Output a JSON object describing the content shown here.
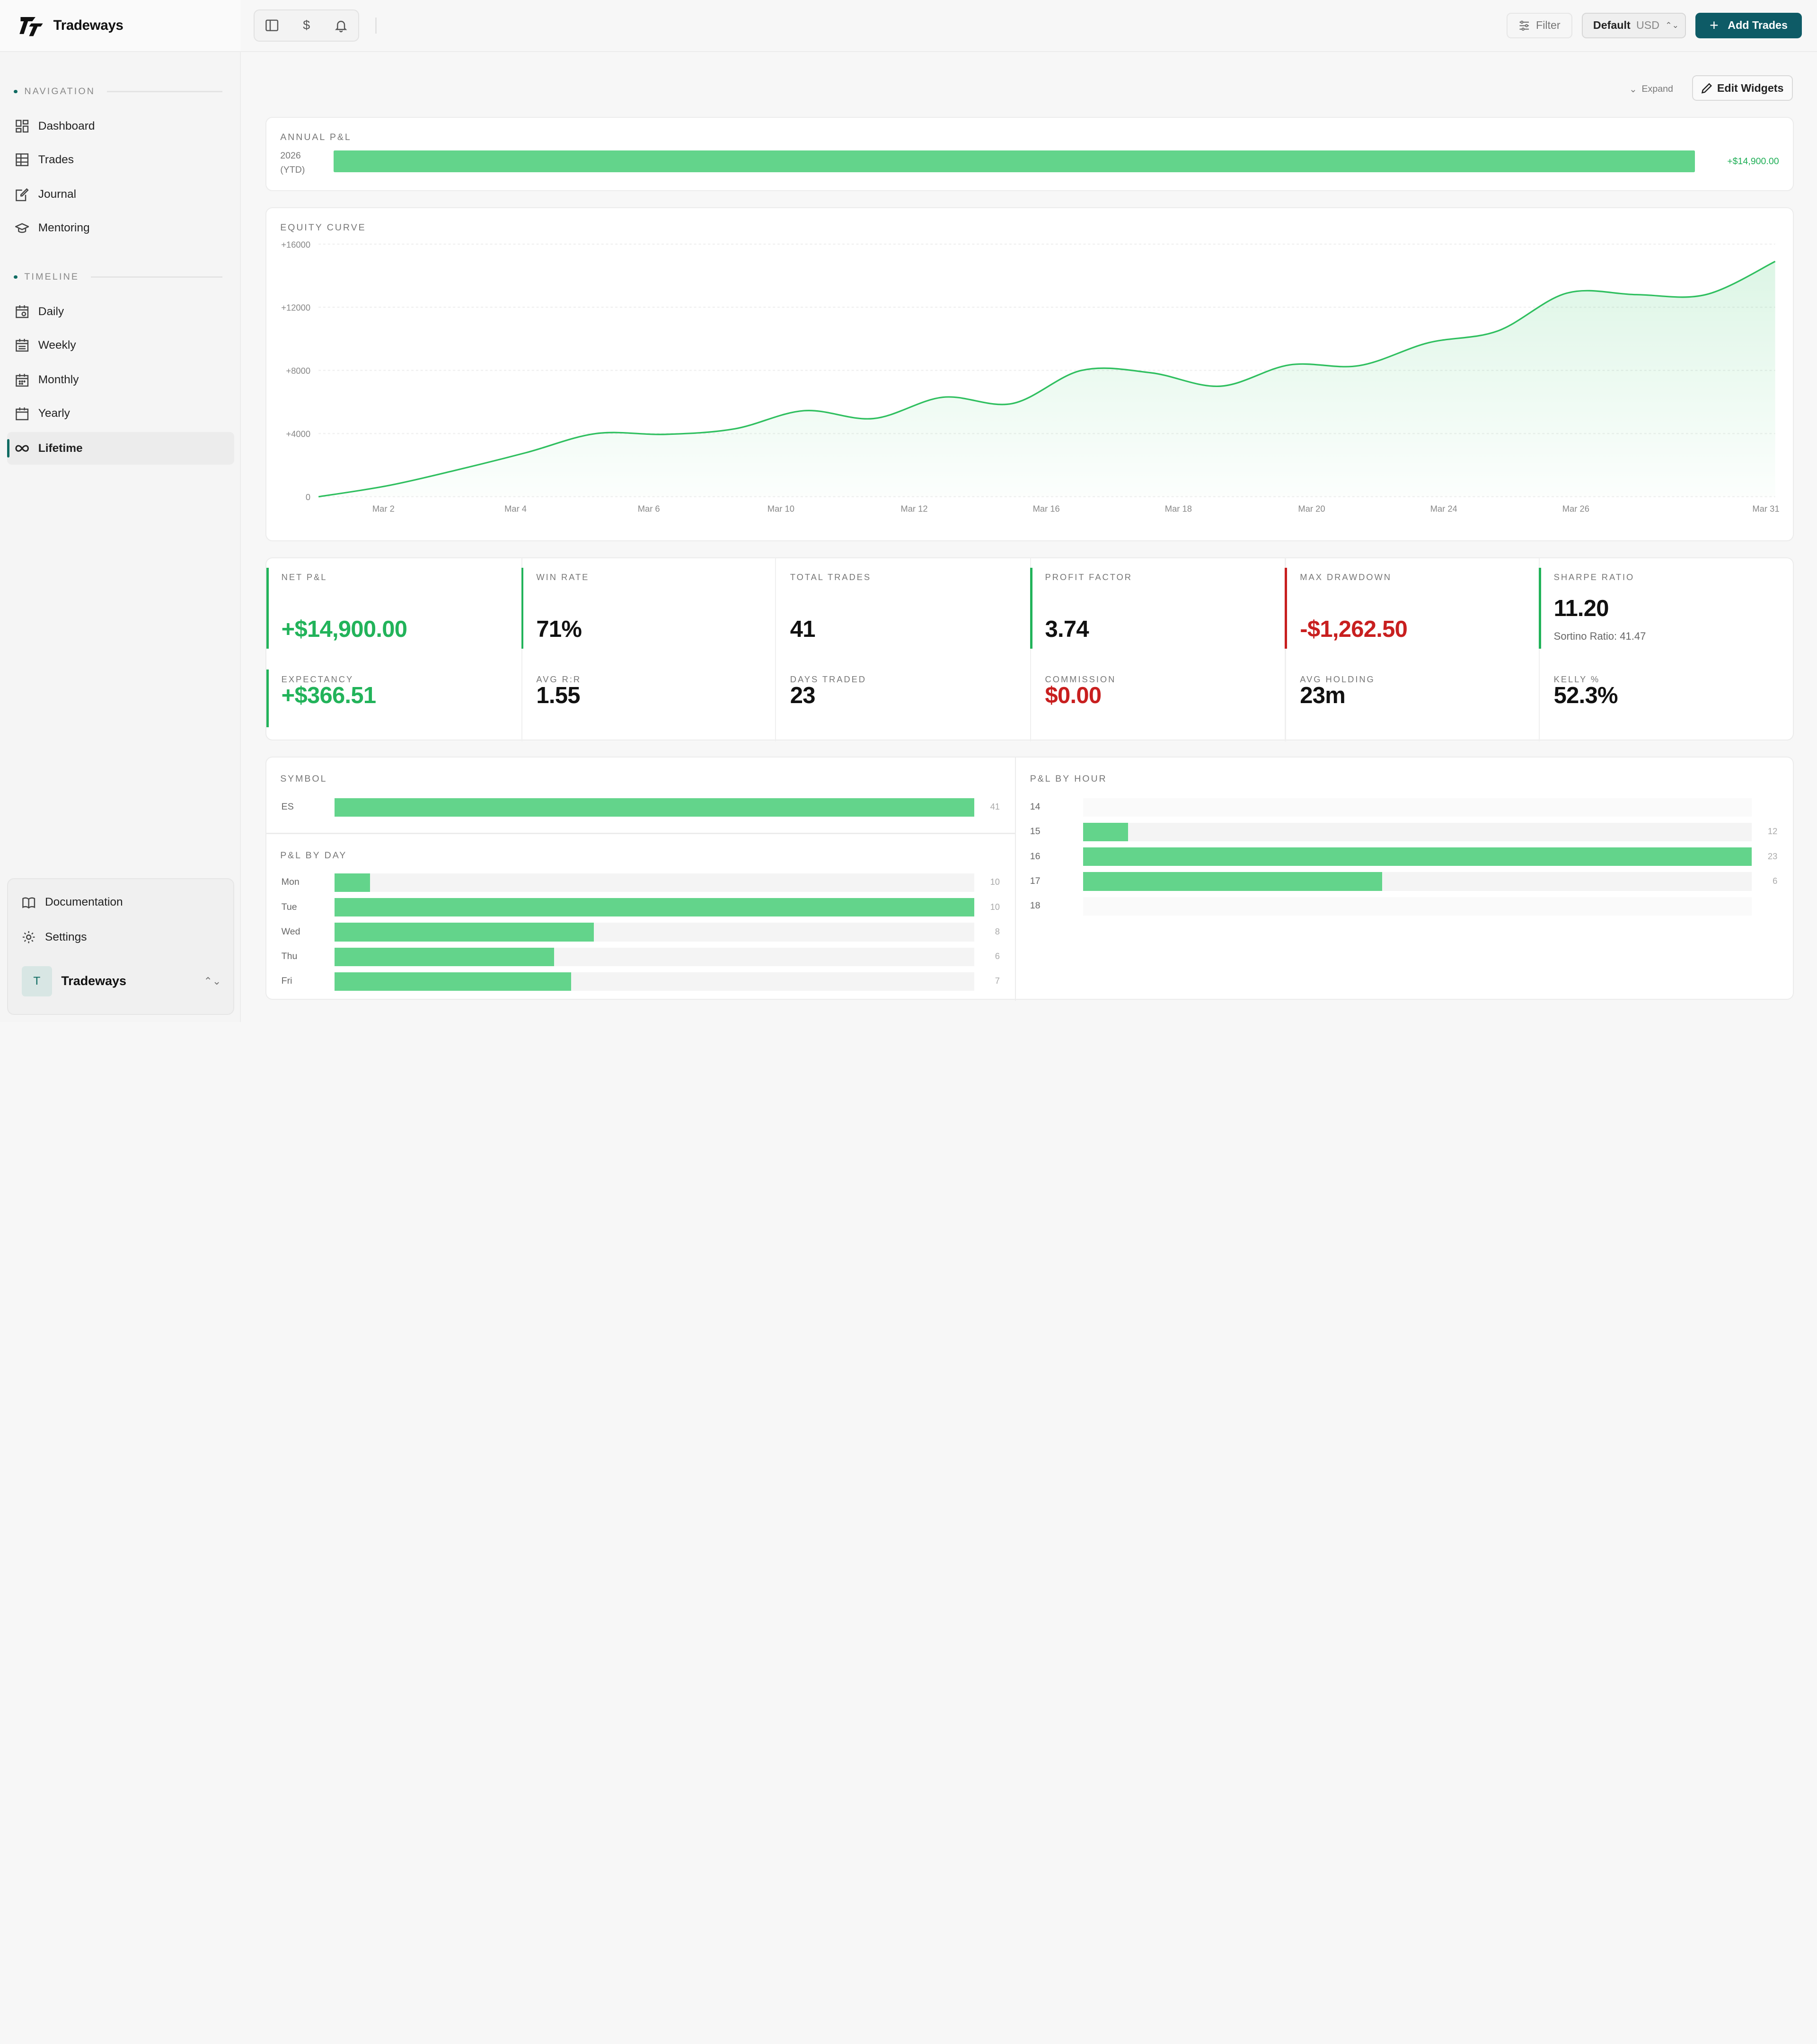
{
  "app": {
    "name": "Tradeways"
  },
  "sidebar": {
    "sections": {
      "navigation": "NAVIGATION",
      "timeline": "TIMELINE"
    },
    "navigation": [
      {
        "label": "Dashboard",
        "icon": "dashboard-icon"
      },
      {
        "label": "Trades",
        "icon": "table-icon"
      },
      {
        "label": "Journal",
        "icon": "journal-icon"
      },
      {
        "label": "Mentoring",
        "icon": "graduation-cap-icon"
      }
    ],
    "timeline": [
      {
        "label": "Daily",
        "icon": "calendar-day-icon"
      },
      {
        "label": "Weekly",
        "icon": "calendar-week-icon"
      },
      {
        "label": "Monthly",
        "icon": "calendar-month-icon"
      },
      {
        "label": "Yearly",
        "icon": "calendar-year-icon"
      },
      {
        "label": "Lifetime",
        "icon": "infinity-icon",
        "active": true
      }
    ],
    "footer": {
      "documentation": "Documentation",
      "settings": "Settings",
      "workspace_initial": "T",
      "workspace_name": "Tradeways"
    }
  },
  "topbar": {
    "filter_label": "Filter",
    "currency_profile": "Default",
    "currency_code": "USD",
    "add_trades_label": "Add Trades"
  },
  "toolbar": {
    "expand_label": "Expand",
    "edit_widgets_label": "Edit Widgets"
  },
  "annual": {
    "title": "ANNUAL P&L",
    "year": "2026",
    "year_note": "(YTD)",
    "value_label": "+$14,900.00",
    "fraction": 1.0
  },
  "equity": {
    "title": "EQUITY CURVE",
    "chart_data": {
      "type": "area",
      "title": "EQUITY CURVE",
      "ylim": [
        0,
        16000
      ],
      "y_ticks": [
        0,
        4000,
        8000,
        12000,
        16000
      ],
      "y_tick_labels": [
        "0",
        "+4000",
        "+8000",
        "+12000",
        "+16000"
      ],
      "x_tick_labels": [
        "Mar 2",
        "Mar 4",
        "Mar 6",
        "Mar 10",
        "Mar 12",
        "Mar 16",
        "Mar 18",
        "Mar 20",
        "Mar 24",
        "Mar 26",
        "Mar 31"
      ],
      "series": [
        {
          "name": "Equity",
          "values": [
            0,
            700,
            1700,
            2800,
            4000,
            3950,
            4300,
            5450,
            4950,
            6300,
            5900,
            8000,
            7850,
            7000,
            8350,
            8300,
            9750,
            10500,
            12900,
            12800,
            12800,
            14900
          ]
        }
      ],
      "color": "#2fbf5f"
    }
  },
  "stats": [
    {
      "label": "NET P&L",
      "value": "+$14,900.00",
      "tone": "green",
      "accent": "#22b35a"
    },
    {
      "label": "WIN RATE",
      "value": "71%",
      "tone": "black",
      "accent": "#22b35a"
    },
    {
      "label": "TOTAL TRADES",
      "value": "41",
      "tone": "black",
      "accent": ""
    },
    {
      "label": "PROFIT FACTOR",
      "value": "3.74",
      "tone": "black",
      "accent": "#22b35a"
    },
    {
      "label": "MAX DRAWDOWN",
      "value": "-$1,262.50",
      "tone": "red",
      "accent": "#c81f1f"
    },
    {
      "label": "SHARPE RATIO",
      "value": "11.20",
      "tone": "black",
      "accent": "#22b35a",
      "sub": "Sortino Ratio: 41.47"
    },
    {
      "label": "EXPECTANCY",
      "value": "+$366.51",
      "tone": "green",
      "accent": "#22b35a"
    },
    {
      "label": "AVG R:R",
      "value": "1.55",
      "tone": "black",
      "accent": ""
    },
    {
      "label": "DAYS TRADED",
      "value": "23",
      "tone": "black",
      "accent": ""
    },
    {
      "label": "COMMISSION",
      "value": "$0.00",
      "tone": "red",
      "accent": ""
    },
    {
      "label": "AVG HOLDING",
      "value": "23m",
      "tone": "black",
      "accent": ""
    },
    {
      "label": "KELLY %",
      "value": "52.3%",
      "tone": "black",
      "accent": ""
    }
  ],
  "symbol": {
    "title": "SYMBOL",
    "chart_data": {
      "type": "bar",
      "categories": [
        "ES"
      ],
      "values": [
        41
      ],
      "max": 41
    }
  },
  "by_day": {
    "title": "P&L BY DAY",
    "chart_data": {
      "type": "bar",
      "categories": [
        "Mon",
        "Tue",
        "Wed",
        "Thu",
        "Fri"
      ],
      "values": [
        10,
        10,
        8,
        6,
        7
      ],
      "fill_fraction": [
        0.055,
        1.0,
        0.405,
        0.343,
        0.37
      ]
    }
  },
  "by_hour": {
    "title": "P&L BY HOUR",
    "chart_data": {
      "type": "bar",
      "categories": [
        "14",
        "15",
        "16",
        "17",
        "18"
      ],
      "values": [
        null,
        12,
        23,
        6,
        null
      ],
      "fill_fraction": [
        0,
        0.067,
        1.0,
        0.447,
        0
      ]
    }
  }
}
